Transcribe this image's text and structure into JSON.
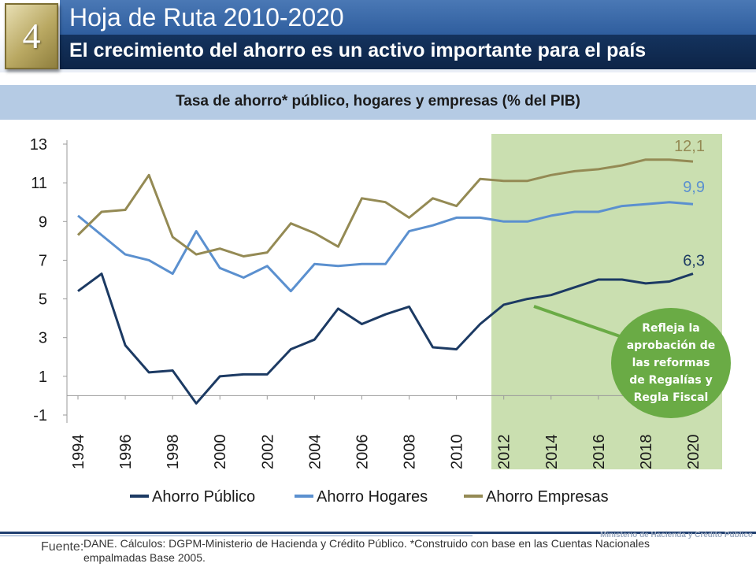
{
  "header": {
    "number": "4",
    "title": "Hoja de Ruta 2010-2020",
    "subtitle": "El crecimiento del ahorro es un activo importante para el país"
  },
  "footer": {
    "fuente_label": "Fuente:",
    "source": "DANE. Cálculos: DGPM-Ministerio de Hacienda y Crédito Público. *Construido con base en las Cuentas Nacionales empalmadas Base 2005.",
    "ministry": "Ministerio de Hacienda y Crédito Público"
  },
  "chart_data": {
    "type": "line",
    "title": "Tasa de ahorro* público, hogares y empresas (% del PIB)",
    "xlabel": "",
    "ylabel": "",
    "x": [
      1994,
      1995,
      1996,
      1997,
      1998,
      1999,
      2000,
      2001,
      2002,
      2003,
      2004,
      2005,
      2006,
      2007,
      2008,
      2009,
      2010,
      2011,
      2012,
      2013,
      2014,
      2015,
      2016,
      2017,
      2018,
      2019,
      2020
    ],
    "x_tick_labels": [
      "1994",
      "1996",
      "1998",
      "2000",
      "2002",
      "2004",
      "2006",
      "2008",
      "2010",
      "2012",
      "2014",
      "2016",
      "2018",
      "2020"
    ],
    "y_ticks": [
      -1,
      1,
      3,
      5,
      7,
      9,
      11,
      13
    ],
    "ylim": [
      -1,
      13
    ],
    "grid": false,
    "legend_position": "bottom",
    "projection_shade": {
      "from": 2011,
      "to": 2020,
      "color": "#cadfb0"
    },
    "series": [
      {
        "name": "Ahorro Público",
        "color": "#1c3a63",
        "values": [
          5.4,
          6.3,
          2.6,
          1.2,
          1.3,
          -0.4,
          1.0,
          1.1,
          1.1,
          2.4,
          2.9,
          4.5,
          3.7,
          4.2,
          4.6,
          2.5,
          2.4,
          3.7,
          4.7,
          5.0,
          5.2,
          5.6,
          6.0,
          6.0,
          5.8,
          5.9,
          6.3
        ],
        "end_label": "6,3"
      },
      {
        "name": "Ahorro Hogares",
        "color": "#5b90cf",
        "values": [
          9.3,
          8.3,
          7.3,
          7.0,
          6.3,
          8.5,
          6.6,
          6.1,
          6.7,
          5.4,
          6.8,
          6.7,
          6.8,
          6.8,
          8.5,
          8.8,
          9.2,
          9.2,
          9.0,
          9.0,
          9.3,
          9.5,
          9.5,
          9.8,
          9.9,
          10.0,
          9.9
        ],
        "end_label": "9,9"
      },
      {
        "name": "Ahorro Empresas",
        "color": "#948a54",
        "values": [
          8.3,
          9.5,
          9.6,
          11.4,
          8.2,
          7.3,
          7.6,
          7.2,
          7.4,
          8.9,
          8.4,
          7.7,
          10.2,
          10.0,
          9.2,
          10.2,
          9.8,
          11.2,
          11.1,
          11.1,
          11.4,
          11.6,
          11.7,
          11.9,
          12.2,
          12.2,
          12.1
        ],
        "end_label": "12,1"
      }
    ],
    "annotation": {
      "text_lines": [
        "Refleja la",
        "aprobación de",
        "las reformas",
        "de Regalías y",
        "Regla Fiscal"
      ],
      "fill": "#6aab45",
      "text_color": "#ffffff"
    }
  }
}
